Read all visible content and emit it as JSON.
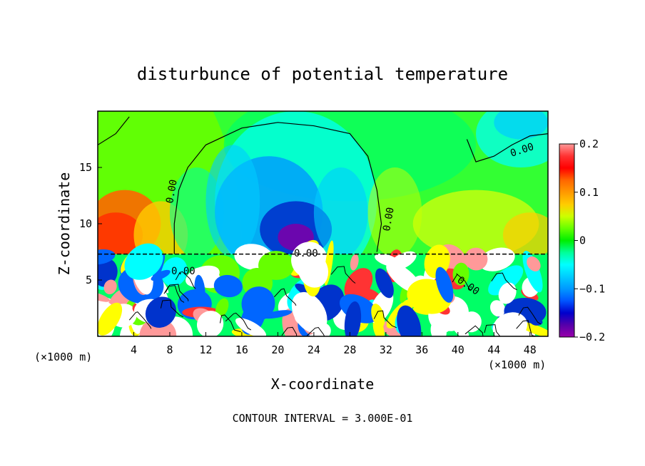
{
  "chart_data": {
    "type": "heatmap",
    "title": "disturbunce of potential temperature",
    "xlabel": "X-coordinate",
    "ylabel": "Z-coordinate",
    "x_unit": "(×1000 m)",
    "y_unit": "(×1000 m)",
    "xlim": [
      0,
      50
    ],
    "ylim": [
      0,
      20
    ],
    "x_ticks": [
      4,
      8,
      12,
      16,
      20,
      24,
      28,
      32,
      36,
      40,
      44,
      48
    ],
    "y_ticks": [
      5,
      10,
      15
    ],
    "colorbar": {
      "range": [
        -0.2,
        0.2
      ],
      "tick_values": [
        0.2,
        0.1,
        0,
        -0.1,
        -0.2
      ],
      "tick_labels": [
        "0.2",
        "0.1",
        "0",
        "−0.1",
        "−0.2"
      ],
      "colors": [
        "#ff9999",
        "#ff3333",
        "#ff0000",
        "#ff6600",
        "#ff9900",
        "#ffcc00",
        "#ccff00",
        "#66ff00",
        "#00ee00",
        "#00ff99",
        "#00ffff",
        "#00ccff",
        "#0099ff",
        "#0055ff",
        "#0000cc",
        "#5500aa",
        "#9900aa"
      ]
    },
    "contour_labels": [
      "0.00",
      "0.00",
      "0.00",
      "0.00",
      "0.00",
      "0.00"
    ],
    "footer": "CONTOUR INTERVAL = 3.000E-01",
    "regions": [
      {
        "x": [
          0,
          5
        ],
        "z": [
          7.5,
          12
        ],
        "value": 0.13
      },
      {
        "x": [
          14,
          30
        ],
        "z": [
          8,
          19
        ],
        "value": -0.06
      },
      {
        "x": [
          18,
          26
        ],
        "z": [
          7.5,
          12
        ],
        "value": -0.15
      },
      {
        "x": [
          42,
          50
        ],
        "z": [
          14,
          20
        ],
        "value": -0.07
      },
      {
        "x": [
          38,
          50
        ],
        "z": [
          7.5,
          12
        ],
        "value": 0.08
      },
      {
        "x": [
          0,
          50
        ],
        "z": [
          0,
          7.3
        ],
        "value": "mixed ±0.2"
      }
    ]
  }
}
